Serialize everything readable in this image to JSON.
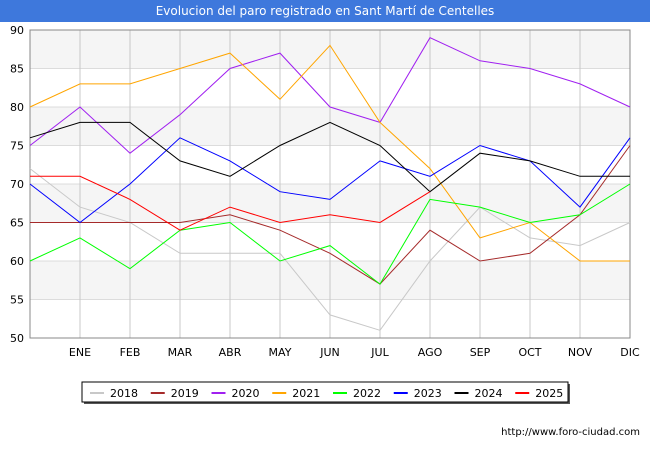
{
  "chart_data": {
    "type": "line",
    "title": "Evolucion del paro registrado en Sant Martí de Centelles",
    "xlabel": "",
    "ylabel": "",
    "categories": [
      "",
      "ENE",
      "FEB",
      "MAR",
      "ABR",
      "MAY",
      "JUN",
      "JUL",
      "AGO",
      "SEP",
      "OCT",
      "NOV",
      "DIC"
    ],
    "ylim": [
      50,
      90
    ],
    "yticks": [
      50,
      55,
      60,
      65,
      70,
      75,
      80,
      85,
      90
    ],
    "grid": true,
    "legend_position": "bottom",
    "series": [
      {
        "name": "2018",
        "color": "#c8c8c8",
        "values": [
          72,
          67,
          65,
          61,
          61,
          61,
          53,
          51,
          60,
          67,
          63,
          62,
          65
        ]
      },
      {
        "name": "2019",
        "color": "#a52a2a",
        "values": [
          65,
          65,
          65,
          65,
          66,
          64,
          61,
          57,
          64,
          60,
          61,
          66,
          75
        ]
      },
      {
        "name": "2020",
        "color": "#a020f0",
        "values": [
          75,
          80,
          74,
          79,
          85,
          87,
          80,
          78,
          89,
          86,
          85,
          83,
          80
        ]
      },
      {
        "name": "2021",
        "color": "#ffa500",
        "values": [
          80,
          83,
          83,
          85,
          87,
          81,
          88,
          78,
          72,
          63,
          65,
          60,
          60
        ]
      },
      {
        "name": "2022",
        "color": "#00ff00",
        "values": [
          60,
          63,
          59,
          64,
          65,
          60,
          62,
          57,
          68,
          67,
          65,
          66,
          70
        ]
      },
      {
        "name": "2023",
        "color": "#0000ff",
        "values": [
          70,
          65,
          70,
          76,
          73,
          69,
          68,
          73,
          71,
          75,
          73,
          67,
          76
        ]
      },
      {
        "name": "2024",
        "color": "#000000",
        "values": [
          76,
          78,
          78,
          73,
          71,
          75,
          78,
          75,
          69,
          74,
          73,
          71,
          71
        ]
      },
      {
        "name": "2025",
        "color": "#ff0000",
        "values": [
          71,
          71,
          68,
          64,
          67,
          65,
          66,
          65,
          69,
          null,
          null,
          null,
          null
        ]
      }
    ]
  },
  "source_text": "http://www.foro-ciudad.com"
}
